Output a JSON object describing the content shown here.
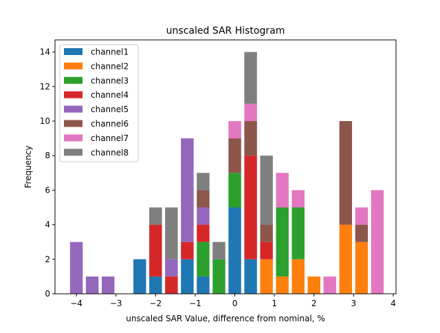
{
  "chart_data": {
    "type": "bar",
    "stacked": true,
    "title": "unscaled SAR Histogram",
    "xlabel": "unscaled SAR Value, difference from nominal, %",
    "ylabel": "Frequency",
    "xlim": [
      -4.54,
      4.07
    ],
    "ylim": [
      0,
      14.7
    ],
    "bin_width": 0.32,
    "x": [
      -4.0,
      -3.6,
      -3.2,
      -2.8,
      -2.4,
      -2.0,
      -1.6,
      -1.2,
      -0.8,
      -0.4,
      0.0,
      0.4,
      0.8,
      1.2,
      1.6,
      2.0,
      2.4,
      2.8,
      3.2,
      3.6
    ],
    "xticks": [
      -4,
      -3,
      -2,
      -1,
      0,
      1,
      2,
      3,
      4
    ],
    "xtick_labels": [
      "−4",
      "−3",
      "−2",
      "−1",
      "0",
      "1",
      "2",
      "3",
      "4"
    ],
    "yticks": [
      0,
      2,
      4,
      6,
      8,
      10,
      12,
      14
    ],
    "ytick_labels": [
      "0",
      "2",
      "4",
      "6",
      "8",
      "10",
      "12",
      "14"
    ],
    "grid": false,
    "legend_position": "top-left",
    "series": [
      {
        "name": "channel1",
        "color": "#1f77b4",
        "values": [
          0,
          0,
          0,
          0,
          2,
          1,
          0,
          2,
          1,
          0,
          5,
          2,
          0,
          0,
          0,
          0,
          0,
          0,
          0,
          0
        ]
      },
      {
        "name": "channel2",
        "color": "#ff7f0e",
        "values": [
          0,
          0,
          0,
          0,
          0,
          0,
          0,
          0,
          0,
          0,
          0,
          0,
          2,
          1,
          2,
          1,
          0,
          4,
          3,
          0
        ]
      },
      {
        "name": "channel3",
        "color": "#2ca02c",
        "values": [
          0,
          0,
          0,
          0,
          0,
          0,
          0,
          0,
          2,
          2,
          2,
          0,
          0,
          4,
          3,
          0,
          0,
          0,
          0,
          0
        ]
      },
      {
        "name": "channel4",
        "color": "#d62728",
        "values": [
          0,
          0,
          0,
          0,
          0,
          3,
          1,
          1,
          1,
          0,
          0,
          6,
          1,
          0,
          0,
          0,
          0,
          0,
          0,
          0
        ]
      },
      {
        "name": "channel5",
        "color": "#9467bd",
        "values": [
          3,
          1,
          1,
          0,
          0,
          0,
          1,
          6,
          1,
          0,
          0,
          0,
          0,
          0,
          0,
          0,
          0,
          0,
          0,
          0
        ]
      },
      {
        "name": "channel6",
        "color": "#8c564b",
        "values": [
          0,
          0,
          0,
          0,
          0,
          0,
          0,
          0,
          1,
          0,
          2,
          2,
          1,
          0,
          0,
          0,
          0,
          6,
          1,
          0
        ]
      },
      {
        "name": "channel7",
        "color": "#e377c2",
        "values": [
          0,
          0,
          0,
          0,
          0,
          0,
          0,
          0,
          0,
          0,
          1,
          1,
          0,
          2,
          1,
          0,
          1,
          0,
          1,
          6
        ]
      },
      {
        "name": "channel8",
        "color": "#7f7f7f",
        "values": [
          0,
          0,
          0,
          0,
          0,
          1,
          3,
          0,
          1,
          1,
          0,
          3,
          4,
          0,
          0,
          0,
          0,
          0,
          0,
          0
        ]
      }
    ]
  }
}
